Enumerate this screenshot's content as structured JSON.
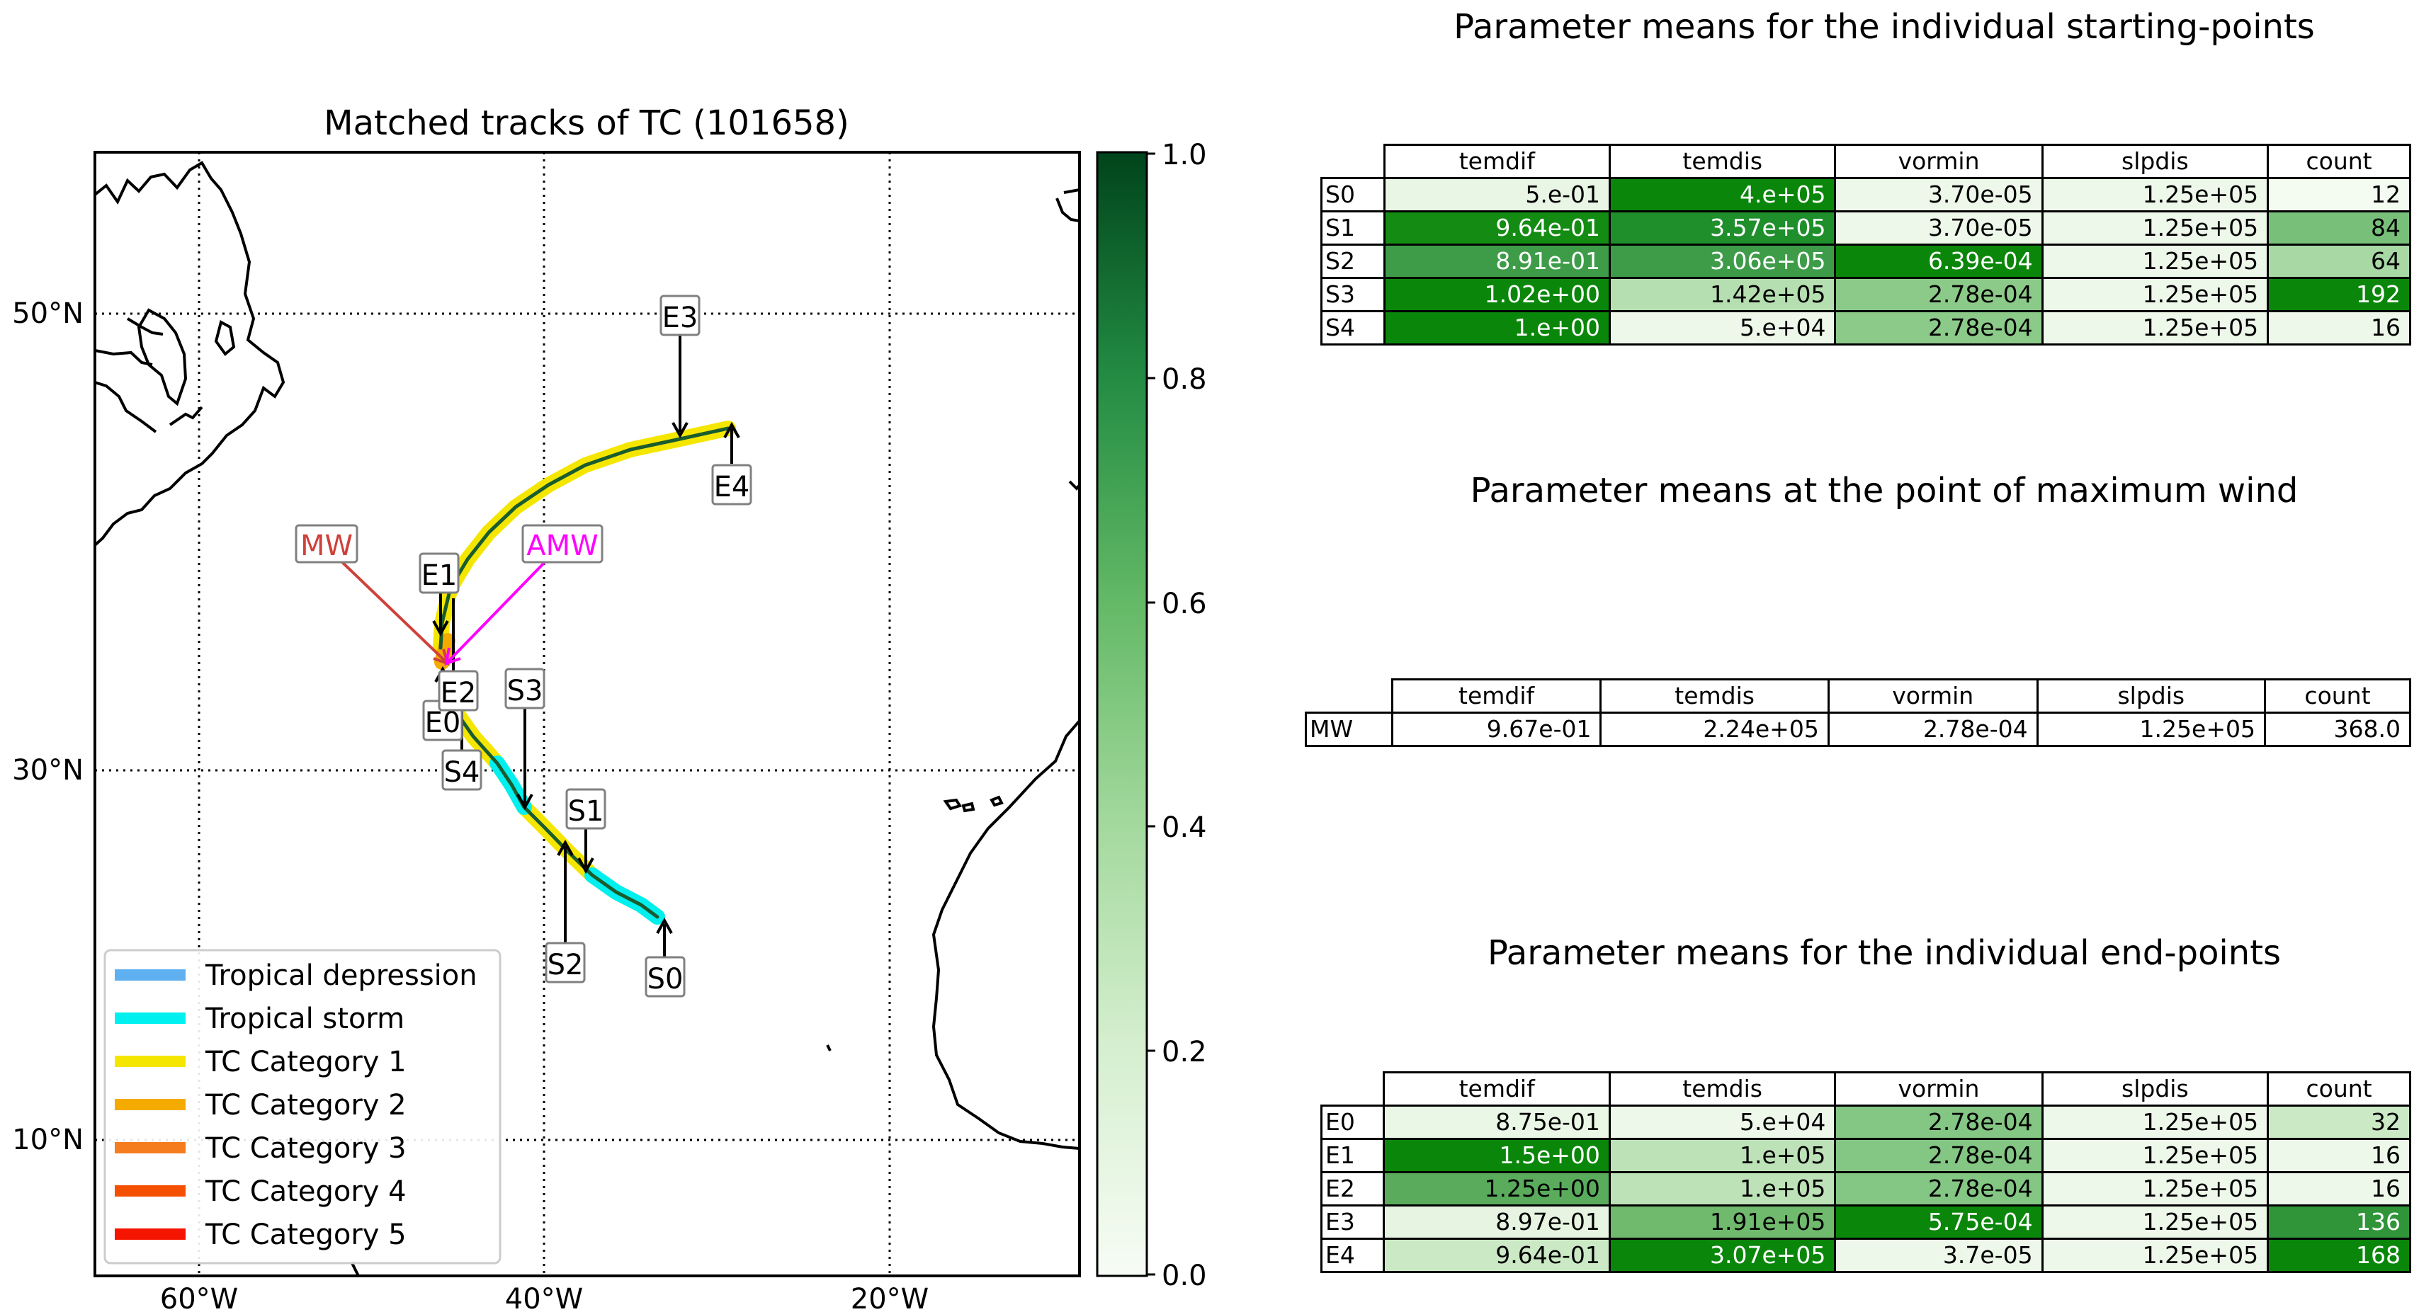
{
  "map": {
    "title": "Matched tracks of TC (101658)",
    "lat_labels": [
      "50°N",
      "30°N",
      "10°N"
    ],
    "lon_labels": [
      "60°W",
      "40°W",
      "20°W"
    ],
    "colorbar": {
      "ticks": [
        "1.0",
        "0.8",
        "0.6",
        "0.4",
        "0.2",
        "0.0"
      ],
      "colormap": "Greens",
      "range": [
        0.0,
        1.0
      ]
    },
    "legend": [
      {
        "label": "Tropical depression",
        "color": "#5fb0f0"
      },
      {
        "label": "Tropical storm",
        "color": "#00f0f0"
      },
      {
        "label": "TC Category 1",
        "color": "#f5e600"
      },
      {
        "label": "TC Category 2",
        "color": "#f5aa00"
      },
      {
        "label": "TC Category 3",
        "color": "#f57d1e"
      },
      {
        "label": "TC Category 4",
        "color": "#f55000"
      },
      {
        "label": "TC Category 5",
        "color": "#f51400"
      }
    ],
    "markers": {
      "S0": "S0",
      "S1": "S1",
      "S2": "S2",
      "S3": "S3",
      "S4": "S4",
      "E0": "E0",
      "E1": "E1",
      "E2": "E2",
      "E3": "E3",
      "E4": "E4",
      "MW": "MW",
      "AMW": "AMW"
    },
    "colors": {
      "track_line": "#1a5c2e",
      "mw": "#d0403a",
      "amw": "#ff00ff"
    }
  },
  "tables": {
    "start": {
      "title": "Parameter means for the individual starting-points",
      "columns": [
        "temdif",
        "temdis",
        "vormin",
        "slpdis",
        "count"
      ],
      "rows": [
        {
          "label": "S0",
          "cells": [
            {
              "v": "5.e-01",
              "bg": "#e9f6e5",
              "fg": "#000"
            },
            {
              "v": "4.e+05",
              "bg": "#0a870a",
              "fg": "#fff"
            },
            {
              "v": "3.70e-05",
              "bg": "#eef8ea",
              "fg": "#000"
            },
            {
              "v": "1.25e+05",
              "bg": "#eef8ea",
              "fg": "#000"
            },
            {
              "v": "12",
              "bg": "#f4fbf1",
              "fg": "#000"
            }
          ]
        },
        {
          "label": "S1",
          "cells": [
            {
              "v": "9.64e-01",
              "bg": "#148c14",
              "fg": "#fff"
            },
            {
              "v": "3.57e+05",
              "bg": "#1f8f2c",
              "fg": "#fff"
            },
            {
              "v": "3.70e-05",
              "bg": "#eef8ea",
              "fg": "#000"
            },
            {
              "v": "1.25e+05",
              "bg": "#eef8ea",
              "fg": "#000"
            },
            {
              "v": "84",
              "bg": "#78c07a",
              "fg": "#000"
            }
          ]
        },
        {
          "label": "S2",
          "cells": [
            {
              "v": "8.91e-01",
              "bg": "#3e9c49",
              "fg": "#fff"
            },
            {
              "v": "3.06e+05",
              "bg": "#3e9c49",
              "fg": "#fff"
            },
            {
              "v": "6.39e-04",
              "bg": "#0a870a",
              "fg": "#fff"
            },
            {
              "v": "1.25e+05",
              "bg": "#eef8ea",
              "fg": "#000"
            },
            {
              "v": "64",
              "bg": "#a8d8a4",
              "fg": "#000"
            }
          ]
        },
        {
          "label": "S3",
          "cells": [
            {
              "v": "1.02e+00",
              "bg": "#0a870a",
              "fg": "#fff"
            },
            {
              "v": "1.42e+05",
              "bg": "#b6dfb1",
              "fg": "#000"
            },
            {
              "v": "2.78e-04",
              "bg": "#8cca89",
              "fg": "#000"
            },
            {
              "v": "1.25e+05",
              "bg": "#eef8ea",
              "fg": "#000"
            },
            {
              "v": "192",
              "bg": "#0a870a",
              "fg": "#fff"
            }
          ]
        },
        {
          "label": "S4",
          "cells": [
            {
              "v": "1.e+00",
              "bg": "#0a870a",
              "fg": "#fff"
            },
            {
              "v": "5.e+04",
              "bg": "#eef8ea",
              "fg": "#000"
            },
            {
              "v": "2.78e-04",
              "bg": "#8cca89",
              "fg": "#000"
            },
            {
              "v": "1.25e+05",
              "bg": "#eef8ea",
              "fg": "#000"
            },
            {
              "v": "16",
              "bg": "#eef8ea",
              "fg": "#000"
            }
          ]
        }
      ]
    },
    "maxwind": {
      "title": "Parameter means at the point of maximum wind",
      "columns": [
        "temdif",
        "temdis",
        "vormin",
        "slpdis",
        "count"
      ],
      "rows": [
        {
          "label": "MW",
          "cells": [
            {
              "v": "9.67e-01",
              "bg": "#ffffff",
              "fg": "#000"
            },
            {
              "v": "2.24e+05",
              "bg": "#ffffff",
              "fg": "#000"
            },
            {
              "v": "2.78e-04",
              "bg": "#ffffff",
              "fg": "#000"
            },
            {
              "v": "1.25e+05",
              "bg": "#ffffff",
              "fg": "#000"
            },
            {
              "v": "368.0",
              "bg": "#ffffff",
              "fg": "#000"
            }
          ]
        }
      ]
    },
    "end": {
      "title": "Parameter means for the individual end-points",
      "columns": [
        "temdif",
        "temdis",
        "vormin",
        "slpdis",
        "count"
      ],
      "rows": [
        {
          "label": "E0",
          "cells": [
            {
              "v": "8.75e-01",
              "bg": "#eaf6e6",
              "fg": "#000"
            },
            {
              "v": "5.e+04",
              "bg": "#eef8ea",
              "fg": "#000"
            },
            {
              "v": "2.78e-04",
              "bg": "#84c683",
              "fg": "#000"
            },
            {
              "v": "1.25e+05",
              "bg": "#eef8ea",
              "fg": "#000"
            },
            {
              "v": "32",
              "bg": "#cbe9c5",
              "fg": "#000"
            }
          ]
        },
        {
          "label": "E1",
          "cells": [
            {
              "v": "1.5e+00",
              "bg": "#0a870a",
              "fg": "#fff"
            },
            {
              "v": "1.e+05",
              "bg": "#bde2b7",
              "fg": "#000"
            },
            {
              "v": "2.78e-04",
              "bg": "#84c683",
              "fg": "#000"
            },
            {
              "v": "1.25e+05",
              "bg": "#eef8ea",
              "fg": "#000"
            },
            {
              "v": "16",
              "bg": "#eef8ea",
              "fg": "#000"
            }
          ]
        },
        {
          "label": "E2",
          "cells": [
            {
              "v": "1.25e+00",
              "bg": "#5aac5c",
              "fg": "#000"
            },
            {
              "v": "1.e+05",
              "bg": "#bde2b7",
              "fg": "#000"
            },
            {
              "v": "2.78e-04",
              "bg": "#84c683",
              "fg": "#000"
            },
            {
              "v": "1.25e+05",
              "bg": "#eef8ea",
              "fg": "#000"
            },
            {
              "v": "16",
              "bg": "#eef8ea",
              "fg": "#000"
            }
          ]
        },
        {
          "label": "E3",
          "cells": [
            {
              "v": "8.97e-01",
              "bg": "#e6f4e1",
              "fg": "#000"
            },
            {
              "v": "1.91e+05",
              "bg": "#70ba6d",
              "fg": "#000"
            },
            {
              "v": "5.75e-04",
              "bg": "#0a870a",
              "fg": "#fff"
            },
            {
              "v": "1.25e+05",
              "bg": "#eef8ea",
              "fg": "#000"
            },
            {
              "v": "136",
              "bg": "#2f9538",
              "fg": "#fff"
            }
          ]
        },
        {
          "label": "E4",
          "cells": [
            {
              "v": "9.64e-01",
              "bg": "#cbe9c5",
              "fg": "#000"
            },
            {
              "v": "3.07e+05",
              "bg": "#0a870a",
              "fg": "#fff"
            },
            {
              "v": "3.7e-05",
              "bg": "#eef8ea",
              "fg": "#000"
            },
            {
              "v": "1.25e+05",
              "bg": "#eef8ea",
              "fg": "#000"
            },
            {
              "v": "168",
              "bg": "#0a870a",
              "fg": "#fff"
            }
          ]
        }
      ]
    }
  }
}
